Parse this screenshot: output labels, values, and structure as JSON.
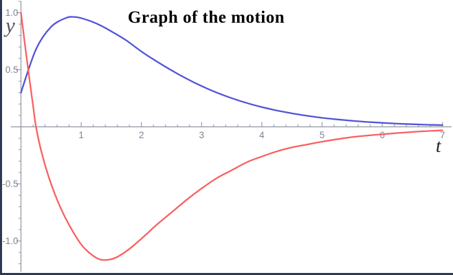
{
  "title": "Graph of the motion",
  "chart_data": {
    "type": "line",
    "title": "Graph of the motion",
    "xlabel": "t",
    "ylabel": "y",
    "xlim": [
      -0.17,
      7.15
    ],
    "ylim": [
      -1.27,
      1.1
    ],
    "grid": false,
    "legend": null,
    "x_ticks": [
      {
        "value": 1,
        "label": "1"
      },
      {
        "value": 2,
        "label": "2"
      },
      {
        "value": 3,
        "label": "3"
      },
      {
        "value": 4,
        "label": "4"
      },
      {
        "value": 5,
        "label": "5"
      },
      {
        "value": 6,
        "label": "6"
      },
      {
        "value": 7,
        "label": "7"
      }
    ],
    "x_minor_step": 0.2,
    "y_ticks": [
      {
        "value": 1.0,
        "label": "1.0"
      },
      {
        "value": 0.5,
        "label": "0.5"
      },
      {
        "value": -0.5,
        "label": "-0.5"
      },
      {
        "value": -1.0,
        "label": "-1.0"
      }
    ],
    "y_minor_step": 0.1,
    "series": [
      {
        "name": "blue-curve",
        "color": "#5254d8",
        "points": [
          [
            0,
            0.3
          ],
          [
            0.25,
            0.68
          ],
          [
            0.5,
            0.876
          ],
          [
            0.75,
            0.955
          ],
          [
            0.875,
            0.963
          ],
          [
            1,
            0.953
          ],
          [
            1.25,
            0.906
          ],
          [
            1.5,
            0.837
          ],
          [
            1.75,
            0.757
          ],
          [
            2,
            0.66
          ],
          [
            2.25,
            0.575
          ],
          [
            2.5,
            0.495
          ],
          [
            2.75,
            0.422
          ],
          [
            3,
            0.357
          ],
          [
            3.25,
            0.3
          ],
          [
            3.5,
            0.251
          ],
          [
            3.75,
            0.209
          ],
          [
            4,
            0.173
          ],
          [
            4.25,
            0.143
          ],
          [
            4.5,
            0.118
          ],
          [
            4.75,
            0.097
          ],
          [
            5,
            0.079
          ],
          [
            5.25,
            0.065
          ],
          [
            5.5,
            0.053
          ],
          [
            5.75,
            0.043
          ],
          [
            6,
            0.035
          ],
          [
            6.25,
            0.028
          ],
          [
            6.5,
            0.023
          ],
          [
            6.75,
            0.018
          ],
          [
            7,
            0.015
          ]
        ]
      },
      {
        "name": "red-curve",
        "color": "#f96060",
        "points": [
          [
            0,
            1.0
          ],
          [
            0.1,
            0.58
          ],
          [
            0.2,
            0.19
          ],
          [
            0.25,
            0.0
          ],
          [
            0.35,
            -0.24
          ],
          [
            0.5,
            -0.5
          ],
          [
            0.65,
            -0.7
          ],
          [
            0.8,
            -0.86
          ],
          [
            1,
            -1.03
          ],
          [
            1.15,
            -1.11
          ],
          [
            1.3,
            -1.16
          ],
          [
            1.45,
            -1.165
          ],
          [
            1.6,
            -1.14
          ],
          [
            1.8,
            -1.07
          ],
          [
            2,
            -0.98
          ],
          [
            2.25,
            -0.86
          ],
          [
            2.5,
            -0.75
          ],
          [
            2.75,
            -0.64
          ],
          [
            3,
            -0.54
          ],
          [
            3.25,
            -0.45
          ],
          [
            3.5,
            -0.38
          ],
          [
            3.75,
            -0.31
          ],
          [
            4,
            -0.26
          ],
          [
            4.25,
            -0.215
          ],
          [
            4.5,
            -0.18
          ],
          [
            4.75,
            -0.155
          ],
          [
            5,
            -0.13
          ],
          [
            5.5,
            -0.09
          ],
          [
            6,
            -0.065
          ],
          [
            6.5,
            -0.045
          ],
          [
            7,
            -0.03
          ]
        ]
      }
    ]
  },
  "colors": {
    "background": "#ffffff",
    "frame_border": "#2d3a53",
    "axis": "#8f95a0",
    "tick_label": "#7e8494",
    "title": "#000000",
    "y_axis_label": "#54565d",
    "x_axis_label": "#1d1d1d",
    "blue_curve": "#5254d8",
    "red_curve": "#f96060"
  }
}
